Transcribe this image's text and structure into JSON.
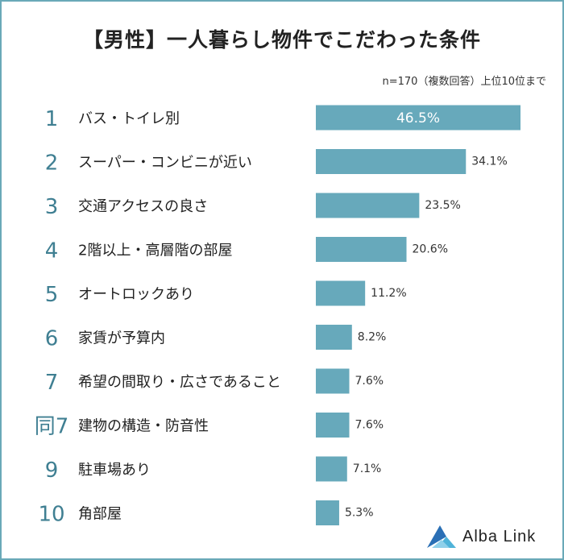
{
  "title": "【男性】一人暮らし物件でこだわった条件",
  "note": "n=170（複数回答）上位10位まで",
  "logo_text": "Alba Link",
  "colors": {
    "bar": "#67a9bb",
    "rank": "#3f7f92",
    "frame": "#6aa9b8"
  },
  "chart_data": {
    "type": "bar",
    "orientation": "horizontal",
    "title": "【男性】一人暮らし物件でこだわった条件",
    "ranks": [
      "1",
      "2",
      "3",
      "4",
      "5",
      "6",
      "7",
      "同7",
      "9",
      "10"
    ],
    "categories": [
      "バス・トイレ別",
      "スーパー・コンビニが近い",
      "交通アクセスの良さ",
      "2階以上・高層階の部屋",
      "オートロックあり",
      "家賃が予算内",
      "希望の間取り・広さであること",
      "建物の構造・防音性",
      "駐車場あり",
      "角部屋"
    ],
    "values": [
      46.5,
      34.1,
      23.5,
      20.6,
      11.2,
      8.2,
      7.6,
      7.6,
      7.1,
      5.3
    ],
    "value_labels": [
      "46.5%",
      "34.1%",
      "23.5%",
      "20.6%",
      "11.2%",
      "8.2%",
      "7.6%",
      "7.6%",
      "7.1%",
      "5.3%"
    ],
    "xlim": [
      0,
      46.5
    ],
    "legend": "none",
    "grid": false
  }
}
